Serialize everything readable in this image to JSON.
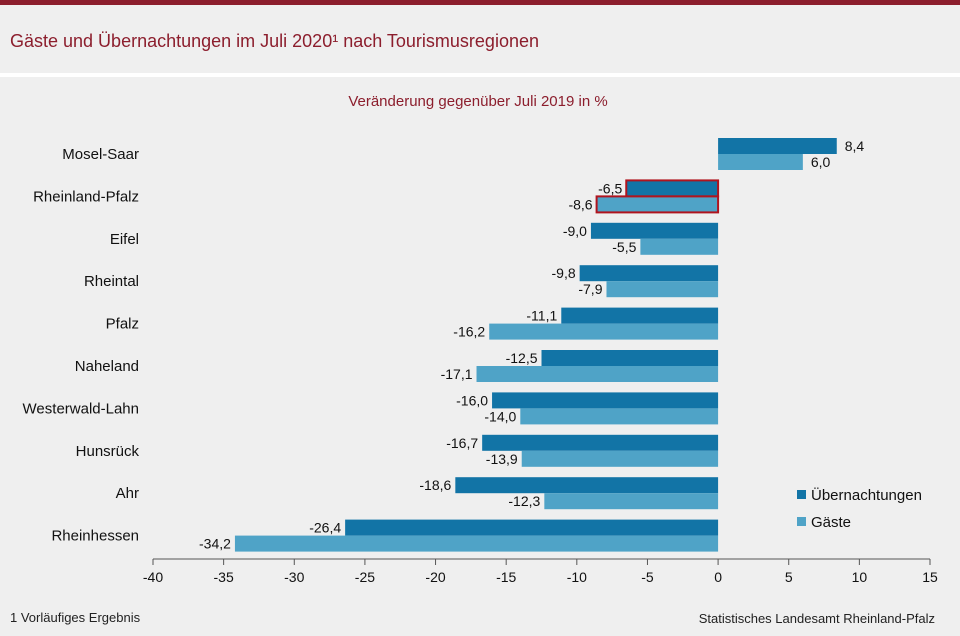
{
  "header": {
    "title": "Gäste und Übernachtungen im Juli 2020¹ nach Tourismusregionen"
  },
  "footer": {
    "footnote": "1 Vorläufiges Ergebnis",
    "source": "Statistisches Landesamt Rheinland-Pfalz"
  },
  "colors": {
    "brand": "#8c1e2d",
    "uebernachtungen": "#1274a6",
    "gaeste": "#4fa3c7",
    "highlight_border": "#b0141e"
  },
  "chart_data": {
    "type": "bar",
    "orientation": "horizontal",
    "subtitle": "Veränderung  gegenüber  Juli 2019 in %",
    "categories": [
      "Mosel-Saar",
      "Rheinland-Pfalz",
      "Eifel",
      "Rheintal",
      "Pfalz",
      "Naheland",
      "Westerwald-Lahn",
      "Hunsrück",
      "Ahr",
      "Rheinhessen"
    ],
    "series": [
      {
        "name": "Übernachtungen",
        "values": [
          8.4,
          -6.5,
          -9.0,
          -9.8,
          -11.1,
          -12.5,
          -16.0,
          -16.7,
          -18.6,
          -26.4
        ],
        "labels": [
          "8,4",
          "-6,5",
          "-9,0",
          "-9,8",
          "-11,1",
          "-12,5",
          "-16,0",
          "-16,7",
          "-18,6",
          "-26,4"
        ]
      },
      {
        "name": "Gäste",
        "values": [
          6.0,
          -8.6,
          -5.5,
          -7.9,
          -16.2,
          -17.1,
          -14.0,
          -13.9,
          -12.3,
          -34.2
        ],
        "labels": [
          "6,0",
          "-8,6",
          "-5,5",
          "-7,9",
          "-16,2",
          "-17,1",
          "-14,0",
          "-13,9",
          "-12,3",
          "-34,2"
        ]
      }
    ],
    "highlight_category": "Rheinland-Pfalz",
    "xlim": [
      -40,
      15
    ],
    "xticks": [
      -40,
      -35,
      -30,
      -25,
      -20,
      -15,
      -10,
      -5,
      0,
      5,
      10,
      15
    ],
    "xtick_labels": [
      "-40",
      "-35",
      "-30",
      "-25",
      "-20",
      "-15",
      "-10",
      "-5",
      "0",
      "5",
      "10",
      "15"
    ],
    "grid": false,
    "legend_position": "bottom-right"
  }
}
